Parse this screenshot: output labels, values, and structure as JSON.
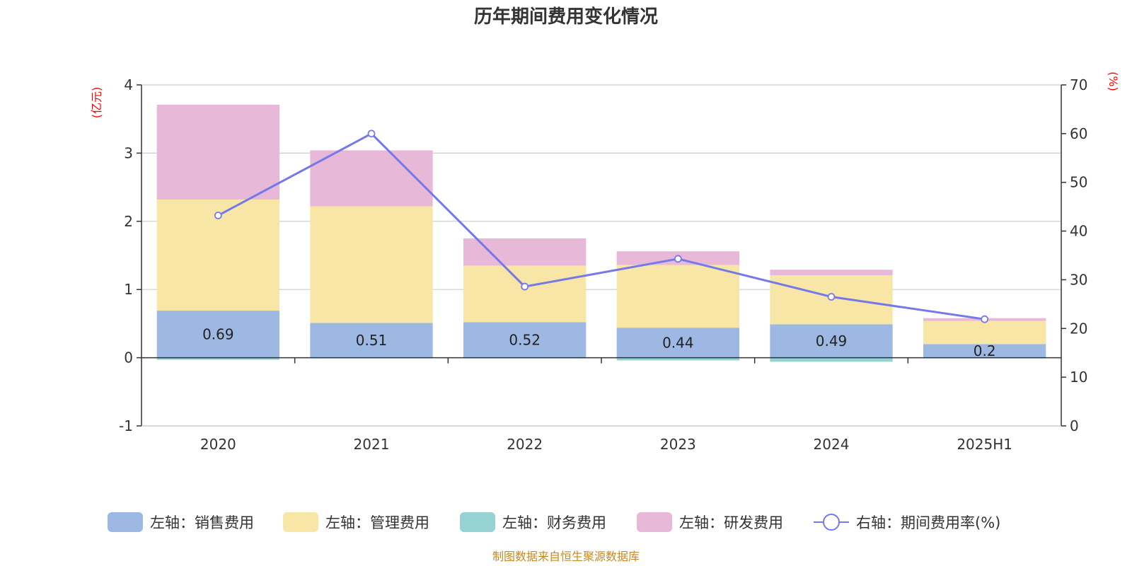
{
  "chart_data": {
    "type": "bar",
    "title": "历年期间费用变化情况",
    "categories": [
      "2020",
      "2021",
      "2022",
      "2023",
      "2024",
      "2025H1"
    ],
    "left_axis": {
      "unit": "(亿元)",
      "ylim": [
        -1,
        4
      ],
      "ticks": [
        -1,
        0,
        1,
        2,
        3,
        4
      ]
    },
    "right_axis": {
      "unit": "(%)",
      "ylim": [
        0,
        70
      ],
      "ticks": [
        0,
        10,
        20,
        30,
        40,
        50,
        60,
        70
      ]
    },
    "series": [
      {
        "name": "左轴：销售费用",
        "kind": "bar",
        "axis": "left",
        "color": "#9db8e2",
        "values": [
          0.69,
          0.51,
          0.52,
          0.44,
          0.49,
          0.2
        ],
        "labels": [
          "0.69",
          "0.51",
          "0.52",
          "0.44",
          "0.49",
          "0.2"
        ]
      },
      {
        "name": "左轴：管理费用",
        "kind": "bar",
        "axis": "left",
        "color": "#f7e6a5",
        "values": [
          1.63,
          1.71,
          0.83,
          0.92,
          0.72,
          0.34
        ]
      },
      {
        "name": "左轴：财务费用",
        "kind": "bar",
        "axis": "left",
        "color": "#96d4d3",
        "values": [
          -0.03,
          -0.01,
          -0.01,
          -0.04,
          -0.06,
          -0.01
        ]
      },
      {
        "name": "左轴：研发费用",
        "kind": "bar",
        "axis": "left",
        "color": "#e8b8d8",
        "values": [
          1.39,
          0.82,
          0.4,
          0.2,
          0.08,
          0.04
        ]
      },
      {
        "name": "右轴：期间费用率(%)",
        "kind": "line",
        "axis": "right",
        "color": "#7479ea",
        "values": [
          43.2,
          60.0,
          28.6,
          34.3,
          26.5,
          21.9
        ]
      }
    ],
    "grid": true,
    "legend_position": "bottom"
  },
  "source": "制图数据来自恒生聚源数据库"
}
